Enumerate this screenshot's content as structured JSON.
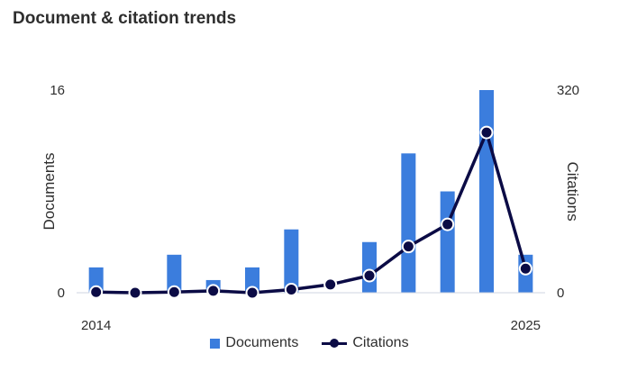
{
  "title": "Document & citation trends",
  "colors": {
    "bar": "#3b7ddd",
    "line": "#0b0b45",
    "axis": "#cfd5e0"
  },
  "chart_data": {
    "type": "bar+line",
    "x": [
      2014,
      2015,
      2016,
      2017,
      2018,
      2019,
      2020,
      2021,
      2022,
      2023,
      2024,
      2025
    ],
    "x_tick_labels": [
      "2014",
      "2025"
    ],
    "series": [
      {
        "name": "Documents",
        "type": "bar",
        "axis": "left",
        "values": [
          2,
          0,
          3,
          1,
          2,
          5,
          0,
          4,
          11,
          8,
          16,
          3
        ]
      },
      {
        "name": "Citations",
        "type": "line",
        "axis": "right",
        "values": [
          1,
          0,
          1,
          3,
          0,
          5,
          13,
          27,
          73,
          108,
          253,
          38
        ]
      }
    ],
    "y_left": {
      "label": "Documents",
      "min": 0,
      "max": 16,
      "tick_labels": [
        "0",
        "16"
      ]
    },
    "y_right": {
      "label": "Citations",
      "min": 0,
      "max": 320,
      "tick_labels": [
        "0",
        "320"
      ]
    },
    "grid": false,
    "legend": "bottom"
  }
}
